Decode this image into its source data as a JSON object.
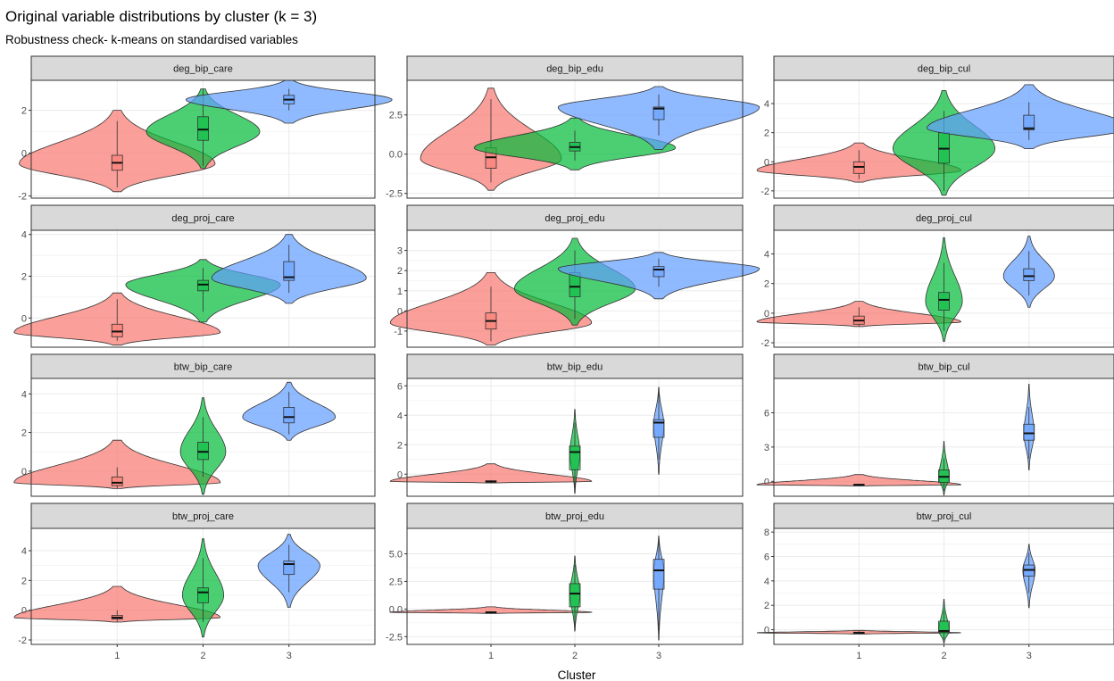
{
  "chart_data": {
    "type": "violin",
    "title": "Original variable distributions by cluster (k = 3)",
    "subtitle": "Robustness check- k-means on standardised variables",
    "xlabel": "Cluster",
    "ylabel": "",
    "categories": [
      "1",
      "2",
      "3"
    ],
    "colors": [
      "#F8766D",
      "#00BA38",
      "#619CFF"
    ],
    "grid": true,
    "facet_ncol": 3,
    "panels": [
      {
        "label": "deg_bip_care",
        "ylim": [
          -2.1,
          3.4
        ],
        "yticks": [
          -2,
          0,
          2
        ],
        "yticklabels": [
          "-2",
          "0",
          "2"
        ],
        "groups": [
          {
            "min": -1.8,
            "max": 2.0,
            "q1": -0.8,
            "median": -0.45,
            "q3": -0.1,
            "wlo": -1.6,
            "whi": 1.5,
            "peak": -0.5,
            "width": 0.95
          },
          {
            "min": -0.7,
            "max": 3.0,
            "q1": 0.6,
            "median": 1.1,
            "q3": 1.7,
            "wlo": -0.6,
            "whi": 3.0,
            "peak": 1.0,
            "width": 0.55
          },
          {
            "min": 1.4,
            "max": 3.4,
            "q1": 2.3,
            "median": 2.5,
            "q3": 2.7,
            "wlo": 2.0,
            "whi": 3.0,
            "peak": 2.5,
            "width": 1.0
          }
        ]
      },
      {
        "label": "deg_bip_edu",
        "ylim": [
          -2.8,
          4.7
        ],
        "yticks": [
          -2.5,
          0,
          2.5
        ],
        "yticklabels": [
          "-2.5",
          "0.0",
          "2.5"
        ],
        "groups": [
          {
            "min": -2.3,
            "max": 4.2,
            "q1": -0.9,
            "median": -0.2,
            "q3": 0.4,
            "wlo": -1.8,
            "whi": 3.5,
            "peak": -0.3,
            "width": 0.7
          },
          {
            "min": -1.0,
            "max": 2.3,
            "q1": 0.2,
            "median": 0.45,
            "q3": 0.75,
            "wlo": -0.4,
            "whi": 1.5,
            "peak": 0.4,
            "width": 1.0
          },
          {
            "min": 0.3,
            "max": 4.3,
            "q1": 2.2,
            "median": 2.9,
            "q3": 3.0,
            "wlo": 1.2,
            "whi": 3.8,
            "peak": 3.0,
            "width": 1.0
          }
        ]
      },
      {
        "label": "deg_bip_cul",
        "ylim": [
          -2.5,
          5.6
        ],
        "yticks": [
          -2,
          0,
          2,
          4
        ],
        "yticklabels": [
          "-2",
          "0",
          "2",
          "4"
        ],
        "groups": [
          {
            "min": -1.4,
            "max": 1.3,
            "q1": -0.8,
            "median": -0.35,
            "q3": 0.0,
            "wlo": -1.2,
            "whi": 0.8,
            "peak": -0.6,
            "width": 1.0
          },
          {
            "min": -2.3,
            "max": 4.9,
            "q1": -0.1,
            "median": 0.9,
            "q3": 2.0,
            "wlo": -2.0,
            "whi": 3.5,
            "peak": 0.9,
            "width": 0.5
          },
          {
            "min": 0.9,
            "max": 5.3,
            "q1": 2.2,
            "median": 2.3,
            "q3": 3.2,
            "wlo": 1.5,
            "whi": 4.1,
            "peak": 2.3,
            "width": 1.0
          }
        ]
      },
      {
        "label": "deg_proj_care",
        "ylim": [
          -1.4,
          4.2
        ],
        "yticks": [
          0,
          2,
          4
        ],
        "yticklabels": [
          "0",
          "2",
          "4"
        ],
        "groups": [
          {
            "min": -1.3,
            "max": 1.2,
            "q1": -0.9,
            "median": -0.65,
            "q3": -0.3,
            "wlo": -1.1,
            "whi": 0.9,
            "peak": -0.7,
            "width": 1.0
          },
          {
            "min": -0.2,
            "max": 2.8,
            "q1": 1.3,
            "median": 1.6,
            "q3": 1.8,
            "wlo": 0.3,
            "whi": 2.4,
            "peak": 1.6,
            "width": 0.75
          },
          {
            "min": 0.7,
            "max": 4.0,
            "q1": 1.8,
            "median": 1.95,
            "q3": 2.7,
            "wlo": 1.2,
            "whi": 3.5,
            "peak": 1.9,
            "width": 0.75
          }
        ]
      },
      {
        "label": "deg_proj_edu",
        "ylim": [
          -1.8,
          4.0
        ],
        "yticks": [
          -1,
          0,
          1,
          2,
          3
        ],
        "yticklabels": [
          "-1",
          "0",
          "1",
          "2",
          "3"
        ],
        "groups": [
          {
            "min": -1.7,
            "max": 1.9,
            "q1": -0.9,
            "median": -0.5,
            "q3": -0.1,
            "wlo": -1.5,
            "whi": 1.2,
            "peak": -0.6,
            "width": 1.0
          },
          {
            "min": -0.7,
            "max": 3.6,
            "q1": 0.7,
            "median": 1.2,
            "q3": 1.9,
            "wlo": -0.4,
            "whi": 3.0,
            "peak": 1.1,
            "width": 0.6
          },
          {
            "min": 0.6,
            "max": 2.9,
            "q1": 1.7,
            "median": 2.05,
            "q3": 2.2,
            "wlo": 1.2,
            "whi": 2.6,
            "peak": 2.1,
            "width": 1.0
          }
        ]
      },
      {
        "label": "deg_proj_cul",
        "ylim": [
          -2.3,
          5.6
        ],
        "yticks": [
          -2,
          0,
          2,
          4
        ],
        "yticklabels": [
          "-2",
          "0",
          "2",
          "4"
        ],
        "groups": [
          {
            "min": -0.9,
            "max": 0.8,
            "q1": -0.75,
            "median": -0.5,
            "q3": -0.2,
            "wlo": -0.9,
            "whi": 0.4,
            "peak": -0.6,
            "width": 1.0
          },
          {
            "min": -1.9,
            "max": 5.1,
            "q1": 0.2,
            "median": 0.9,
            "q3": 1.4,
            "wlo": -1.2,
            "whi": 3.4,
            "peak": 0.8,
            "width": 0.18
          },
          {
            "min": 0.4,
            "max": 5.2,
            "q1": 2.2,
            "median": 2.5,
            "q3": 3.0,
            "wlo": 1.2,
            "whi": 4.2,
            "peak": 2.5,
            "width": 0.25
          }
        ]
      },
      {
        "label": "btw_bip_care",
        "ylim": [
          -1.3,
          4.8
        ],
        "yticks": [
          0,
          2,
          4
        ],
        "yticklabels": [
          "0",
          "2",
          "4"
        ],
        "groups": [
          {
            "min": -0.9,
            "max": 1.6,
            "q1": -0.75,
            "median": -0.6,
            "q3": -0.3,
            "wlo": -0.9,
            "whi": 0.2,
            "peak": -0.6,
            "width": 1.0
          },
          {
            "min": -1.2,
            "max": 3.8,
            "q1": 0.6,
            "median": 1.0,
            "q3": 1.5,
            "wlo": -0.3,
            "whi": 2.8,
            "peak": 1.0,
            "width": 0.22
          },
          {
            "min": 1.6,
            "max": 4.6,
            "q1": 2.5,
            "median": 2.8,
            "q3": 3.3,
            "wlo": 1.9,
            "whi": 4.1,
            "peak": 2.8,
            "width": 0.45
          }
        ]
      },
      {
        "label": "btw_bip_edu",
        "ylim": [
          -1.5,
          6.5
        ],
        "yticks": [
          0,
          2,
          4,
          6
        ],
        "yticklabels": [
          "0",
          "2",
          "4",
          "6"
        ],
        "groups": [
          {
            "min": -0.6,
            "max": 0.7,
            "q1": -0.55,
            "median": -0.5,
            "q3": -0.45,
            "wlo": -0.6,
            "whi": -0.4,
            "peak": -0.5,
            "width": 1.0
          },
          {
            "min": -1.3,
            "max": 4.4,
            "q1": 0.3,
            "median": 1.5,
            "q3": 1.9,
            "wlo": -1.0,
            "whi": 3.5,
            "peak": 1.4,
            "width": 0.05
          },
          {
            "min": 0.0,
            "max": 5.9,
            "q1": 2.5,
            "median": 3.5,
            "q3": 3.7,
            "wlo": 1.0,
            "whi": 5.6,
            "peak": 3.4,
            "width": 0.05
          }
        ]
      },
      {
        "label": "btw_bip_cul",
        "ylim": [
          -1.3,
          9.0
        ],
        "yticks": [
          0,
          3,
          6
        ],
        "yticklabels": [
          "0",
          "3",
          "6"
        ],
        "groups": [
          {
            "min": -0.4,
            "max": 0.6,
            "q1": -0.35,
            "median": -0.3,
            "q3": -0.25,
            "wlo": -0.4,
            "whi": -0.2,
            "peak": -0.3,
            "width": 1.0
          },
          {
            "min": -1.2,
            "max": 3.5,
            "q1": -0.1,
            "median": 0.4,
            "q3": 1.0,
            "wlo": -0.8,
            "whi": 2.0,
            "peak": 0.4,
            "width": 0.05
          },
          {
            "min": 1.0,
            "max": 8.5,
            "q1": 3.6,
            "median": 4.2,
            "q3": 5.0,
            "wlo": 2.0,
            "whi": 6.5,
            "peak": 4.2,
            "width": 0.05
          }
        ]
      },
      {
        "label": "btw_proj_care",
        "ylim": [
          -2.3,
          5.5
        ],
        "yticks": [
          -2,
          0,
          2,
          4
        ],
        "yticklabels": [
          "-2",
          "0",
          "2",
          "4"
        ],
        "groups": [
          {
            "min": -0.8,
            "max": 1.6,
            "q1": -0.6,
            "median": -0.5,
            "q3": -0.35,
            "wlo": -0.8,
            "whi": 0.0,
            "peak": -0.5,
            "width": 1.0
          },
          {
            "min": -1.8,
            "max": 4.8,
            "q1": 0.5,
            "median": 1.2,
            "q3": 1.5,
            "wlo": -0.8,
            "whi": 3.5,
            "peak": 1.0,
            "width": 0.2
          },
          {
            "min": 0.2,
            "max": 5.1,
            "q1": 2.4,
            "median": 3.1,
            "q3": 3.3,
            "wlo": 1.2,
            "whi": 4.4,
            "peak": 3.0,
            "width": 0.3
          }
        ]
      },
      {
        "label": "btw_proj_edu",
        "ylim": [
          -3.2,
          7.3
        ],
        "yticks": [
          -2.5,
          0,
          2.5,
          5
        ],
        "yticklabels": [
          "-2.5",
          "0.0",
          "2.5",
          "5.0"
        ],
        "groups": [
          {
            "min": -0.4,
            "max": 0.2,
            "q1": -0.35,
            "median": -0.3,
            "q3": -0.25,
            "wlo": -0.4,
            "whi": -0.2,
            "peak": -0.3,
            "width": 1.0
          },
          {
            "min": -2.0,
            "max": 4.8,
            "q1": 0.2,
            "median": 1.4,
            "q3": 2.3,
            "wlo": -1.5,
            "whi": 4.0,
            "peak": 1.4,
            "width": 0.05
          },
          {
            "min": -2.8,
            "max": 6.6,
            "q1": 1.8,
            "median": 3.5,
            "q3": 4.5,
            "wlo": -2.0,
            "whi": 6.5,
            "peak": 3.4,
            "width": 0.05
          }
        ]
      },
      {
        "label": "btw_proj_cul",
        "ylim": [
          -1.2,
          8.3
        ],
        "yticks": [
          0,
          2,
          4,
          6,
          8
        ],
        "yticklabels": [
          "0",
          "2",
          "4",
          "6",
          "8"
        ],
        "groups": [
          {
            "min": -0.35,
            "max": -0.05,
            "q1": -0.3,
            "median": -0.25,
            "q3": -0.2,
            "wlo": -0.35,
            "whi": -0.1,
            "peak": -0.25,
            "width": 1.0
          },
          {
            "min": -1.1,
            "max": 2.5,
            "q1": -0.2,
            "median": -0.1,
            "q3": 0.7,
            "wlo": -0.8,
            "whi": 1.6,
            "peak": -0.1,
            "width": 0.05
          },
          {
            "min": 1.8,
            "max": 7.0,
            "q1": 4.4,
            "median": 4.9,
            "q3": 5.3,
            "wlo": 3.0,
            "whi": 6.3,
            "peak": 4.9,
            "width": 0.06
          }
        ]
      }
    ]
  }
}
